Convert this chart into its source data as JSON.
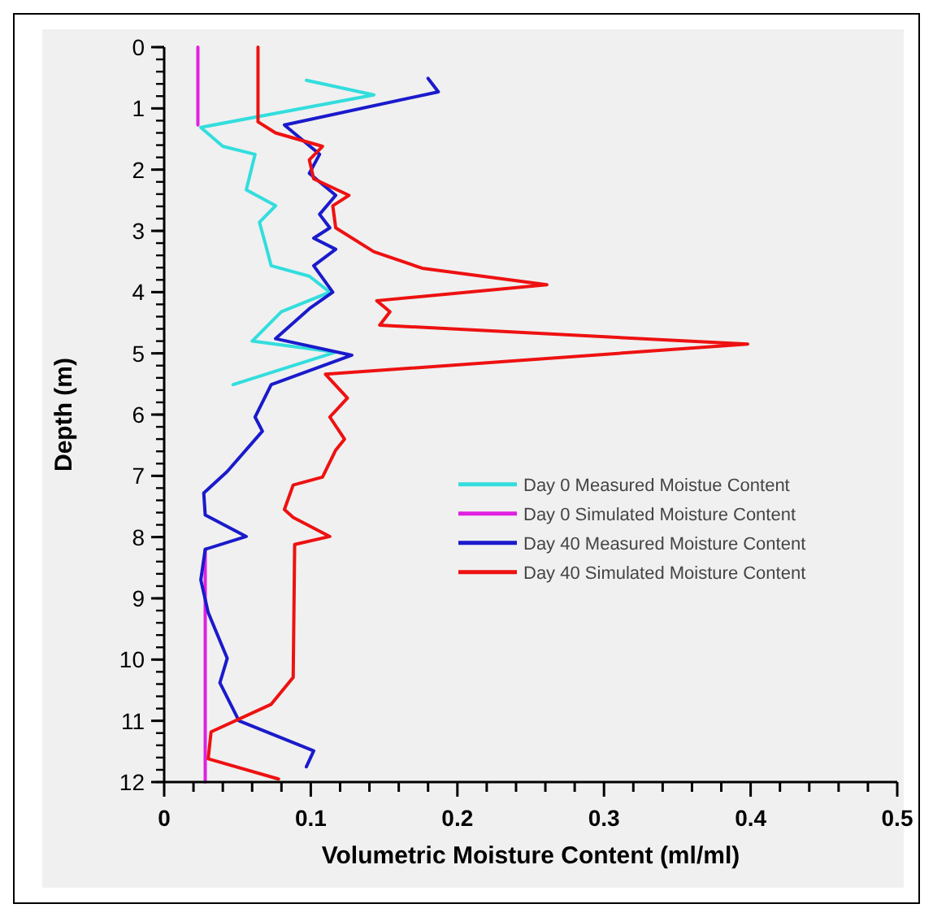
{
  "chart_data": {
    "type": "line",
    "xlabel": "Volumetric Moisture Content (ml/ml)",
    "ylabel": "Depth (m)",
    "xlim": [
      0,
      0.5
    ],
    "xticks": [
      0,
      {
        "value": 0.02,
        "label": null
      },
      {
        "value": 0.04,
        "label": null
      },
      {
        "value": 0.06,
        "label": null
      },
      {
        "value": 0.08,
        "label": null
      },
      0.1,
      {
        "value": 0.12,
        "label": null
      },
      {
        "value": 0.14,
        "label": null
      },
      {
        "value": 0.16,
        "label": null
      },
      {
        "value": 0.18,
        "label": null
      },
      0.2,
      {
        "value": 0.22,
        "label": null
      },
      {
        "value": 0.24,
        "label": null
      },
      {
        "value": 0.26,
        "label": null
      },
      {
        "value": 0.28,
        "label": null
      },
      0.3,
      {
        "value": 0.32,
        "label": null
      },
      {
        "value": 0.34,
        "label": null
      },
      {
        "value": 0.36,
        "label": null
      },
      {
        "value": 0.38,
        "label": null
      },
      0.4,
      {
        "value": 0.42,
        "label": null
      },
      {
        "value": 0.44,
        "label": null
      },
      {
        "value": 0.46,
        "label": null
      },
      {
        "value": 0.48,
        "label": null
      },
      0.5
    ],
    "ylim": [
      12,
      0
    ],
    "yticks": [
      0,
      1,
      2,
      3,
      4,
      5,
      6,
      7,
      8,
      9,
      10,
      11,
      12
    ],
    "legend": "right",
    "grid": false,
    "marker": "none",
    "line_style": "solid",
    "series": [
      {
        "name": "Day 0 Measured Moistue Content",
        "color": "#33dddd",
        "x": [
          0.097,
          0.143,
          0.025,
          0.04,
          0.062,
          0.056,
          0.076,
          0.065,
          0.069,
          0.073,
          0.099,
          0.113,
          0.08,
          0.06,
          0.117,
          0.047
        ],
        "values": [
          0.54,
          0.78,
          1.31,
          1.62,
          1.75,
          2.33,
          2.59,
          2.86,
          3.21,
          3.57,
          3.74,
          4.0,
          4.32,
          4.8,
          4.98,
          5.51
        ]
      },
      {
        "name": "Day 0 Simulated Moisture Content",
        "color": "#e020e0",
        "x": [
          0.023,
          0.023,
          null,
          0.028,
          0.028
        ],
        "values": [
          0,
          1.27,
          null,
          8.2,
          12
        ]
      },
      {
        "name": "Day 40 Measured  Moisture Content",
        "color": "#1a1acc",
        "x": [
          0.18,
          0.187,
          0.082,
          0.095,
          0.106,
          0.099,
          0.117,
          0.106,
          0.113,
          0.102,
          0.117,
          0.102,
          0.115,
          0.099,
          0.076,
          0.128,
          0.073,
          0.062,
          0.067,
          0.043,
          0.027,
          0.028,
          0.056,
          0.028,
          0.025,
          0.03,
          0.043,
          0.038,
          0.051,
          0.102,
          0.097
        ],
        "values": [
          0.51,
          0.73,
          1.27,
          1.53,
          1.75,
          2.06,
          2.42,
          2.73,
          2.95,
          3.12,
          3.3,
          3.57,
          4.0,
          4.27,
          4.76,
          5.03,
          5.51,
          6.04,
          6.27,
          6.93,
          7.28,
          7.64,
          7.99,
          8.2,
          8.7,
          9.23,
          9.98,
          10.38,
          11.0,
          11.49,
          11.75
        ]
      },
      {
        "name": "Day 40 Simulated Moisture Content",
        "color": "#ee1111",
        "x": [
          0.064,
          0.064,
          0.076,
          0.108,
          0.099,
          0.102,
          0.126,
          0.115,
          0.117,
          0.143,
          0.176,
          0.261,
          0.145,
          0.154,
          0.147,
          0.398,
          0.11,
          0.125,
          0.113,
          0.123,
          0.117,
          0.108,
          0.088,
          0.082,
          0.088,
          0.113,
          0.089,
          0.088,
          0.073,
          0.032,
          0.03,
          0.078
        ],
        "values": [
          0,
          1.22,
          1.4,
          1.62,
          1.84,
          2.15,
          2.42,
          2.59,
          2.95,
          3.34,
          3.61,
          3.88,
          4.14,
          4.32,
          4.54,
          4.85,
          5.34,
          5.73,
          6.04,
          6.4,
          6.58,
          7.02,
          7.15,
          7.55,
          7.68,
          7.99,
          8.12,
          10.29,
          10.73,
          11.18,
          11.62,
          11.95
        ]
      }
    ]
  }
}
